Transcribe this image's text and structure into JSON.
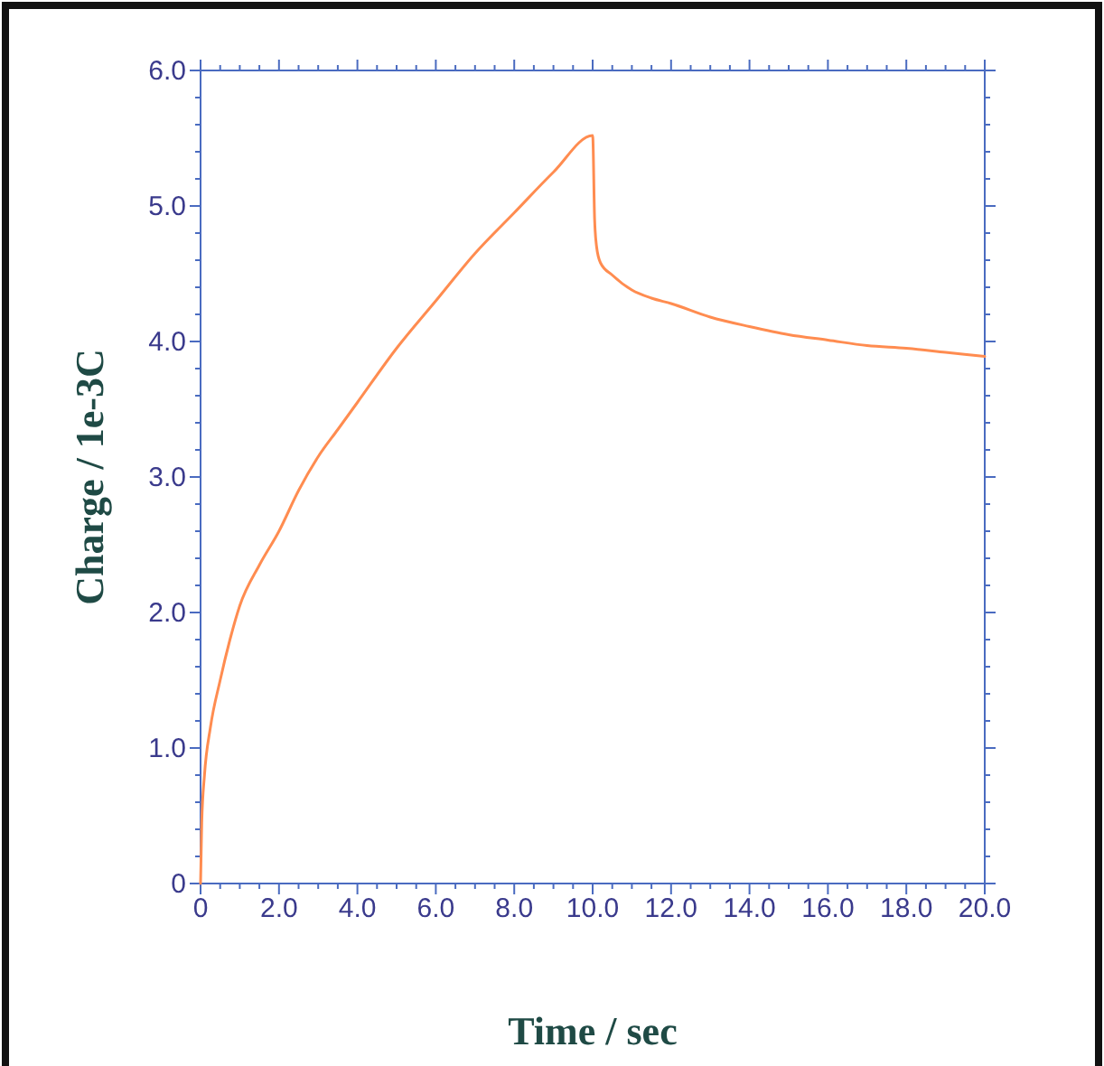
{
  "chart_data": {
    "type": "line",
    "xlabel": "Time / sec",
    "ylabel": "Charge / 1e-3C",
    "xlim": [
      0,
      20
    ],
    "ylim": [
      0,
      6
    ],
    "xticks": [
      {
        "value": 0,
        "label": "0"
      },
      {
        "value": 0.5,
        "label": null
      },
      {
        "value": 1,
        "label": null
      },
      {
        "value": 1.5,
        "label": null
      },
      {
        "value": 2,
        "label": "2.0"
      },
      {
        "value": 2.5,
        "label": null
      },
      {
        "value": 3,
        "label": null
      },
      {
        "value": 3.5,
        "label": null
      },
      {
        "value": 4,
        "label": "4.0"
      },
      {
        "value": 4.5,
        "label": null
      },
      {
        "value": 5,
        "label": null
      },
      {
        "value": 5.5,
        "label": null
      },
      {
        "value": 6,
        "label": "6.0"
      },
      {
        "value": 6.5,
        "label": null
      },
      {
        "value": 7,
        "label": null
      },
      {
        "value": 7.5,
        "label": null
      },
      {
        "value": 8,
        "label": "8.0"
      },
      {
        "value": 8.5,
        "label": null
      },
      {
        "value": 9,
        "label": null
      },
      {
        "value": 9.5,
        "label": null
      },
      {
        "value": 10,
        "label": "10.0"
      },
      {
        "value": 10.5,
        "label": null
      },
      {
        "value": 11,
        "label": null
      },
      {
        "value": 11.5,
        "label": null
      },
      {
        "value": 12,
        "label": "12.0"
      },
      {
        "value": 12.5,
        "label": null
      },
      {
        "value": 13,
        "label": null
      },
      {
        "value": 13.5,
        "label": null
      },
      {
        "value": 14,
        "label": "14.0"
      },
      {
        "value": 14.5,
        "label": null
      },
      {
        "value": 15,
        "label": null
      },
      {
        "value": 15.5,
        "label": null
      },
      {
        "value": 16,
        "label": "16.0"
      },
      {
        "value": 16.5,
        "label": null
      },
      {
        "value": 17,
        "label": null
      },
      {
        "value": 17.5,
        "label": null
      },
      {
        "value": 18,
        "label": "18.0"
      },
      {
        "value": 18.5,
        "label": null
      },
      {
        "value": 19,
        "label": null
      },
      {
        "value": 19.5,
        "label": null
      },
      {
        "value": 20,
        "label": "20.0"
      }
    ],
    "yticks": [
      {
        "value": 0,
        "label": "0"
      },
      {
        "value": 0.2,
        "label": null
      },
      {
        "value": 0.4,
        "label": null
      },
      {
        "value": 0.6,
        "label": null
      },
      {
        "value": 0.8,
        "label": null
      },
      {
        "value": 1,
        "label": "1.0"
      },
      {
        "value": 1.2,
        "label": null
      },
      {
        "value": 1.4,
        "label": null
      },
      {
        "value": 1.6,
        "label": null
      },
      {
        "value": 1.8,
        "label": null
      },
      {
        "value": 2,
        "label": "2.0"
      },
      {
        "value": 2.2,
        "label": null
      },
      {
        "value": 2.4,
        "label": null
      },
      {
        "value": 2.6,
        "label": null
      },
      {
        "value": 2.8,
        "label": null
      },
      {
        "value": 3,
        "label": "3.0"
      },
      {
        "value": 3.2,
        "label": null
      },
      {
        "value": 3.4,
        "label": null
      },
      {
        "value": 3.6,
        "label": null
      },
      {
        "value": 3.8,
        "label": null
      },
      {
        "value": 4,
        "label": "4.0"
      },
      {
        "value": 4.2,
        "label": null
      },
      {
        "value": 4.4,
        "label": null
      },
      {
        "value": 4.6,
        "label": null
      },
      {
        "value": 4.8,
        "label": null
      },
      {
        "value": 5,
        "label": "5.0"
      },
      {
        "value": 5.2,
        "label": null
      },
      {
        "value": 5.4,
        "label": null
      },
      {
        "value": 5.6,
        "label": null
      },
      {
        "value": 5.8,
        "label": null
      },
      {
        "value": 6,
        "label": "6.0"
      }
    ],
    "grid": false,
    "marker": "none",
    "line_style": "solid",
    "series": [
      {
        "color": "#ff8c50",
        "x": [
          0,
          0.03,
          0.1,
          0.25,
          0.5,
          0.75,
          1,
          1.5,
          2,
          2.5,
          3,
          3.5,
          4,
          5,
          6,
          7,
          8,
          9,
          10,
          10.05,
          10.1,
          10.2,
          10.5,
          11,
          11.5,
          12,
          13,
          14,
          15,
          16,
          17,
          18,
          19,
          20
        ],
        "values": [
          0,
          0.45,
          0.8,
          1.15,
          1.5,
          1.8,
          2.05,
          2.35,
          2.6,
          2.9,
          3.15,
          3.35,
          3.55,
          3.95,
          4.3,
          4.65,
          4.95,
          5.25,
          5.52,
          4.9,
          4.7,
          4.58,
          4.49,
          4.38,
          4.32,
          4.28,
          4.18,
          4.11,
          4.05,
          4.01,
          3.97,
          3.95,
          3.92,
          3.89
        ]
      }
    ]
  }
}
